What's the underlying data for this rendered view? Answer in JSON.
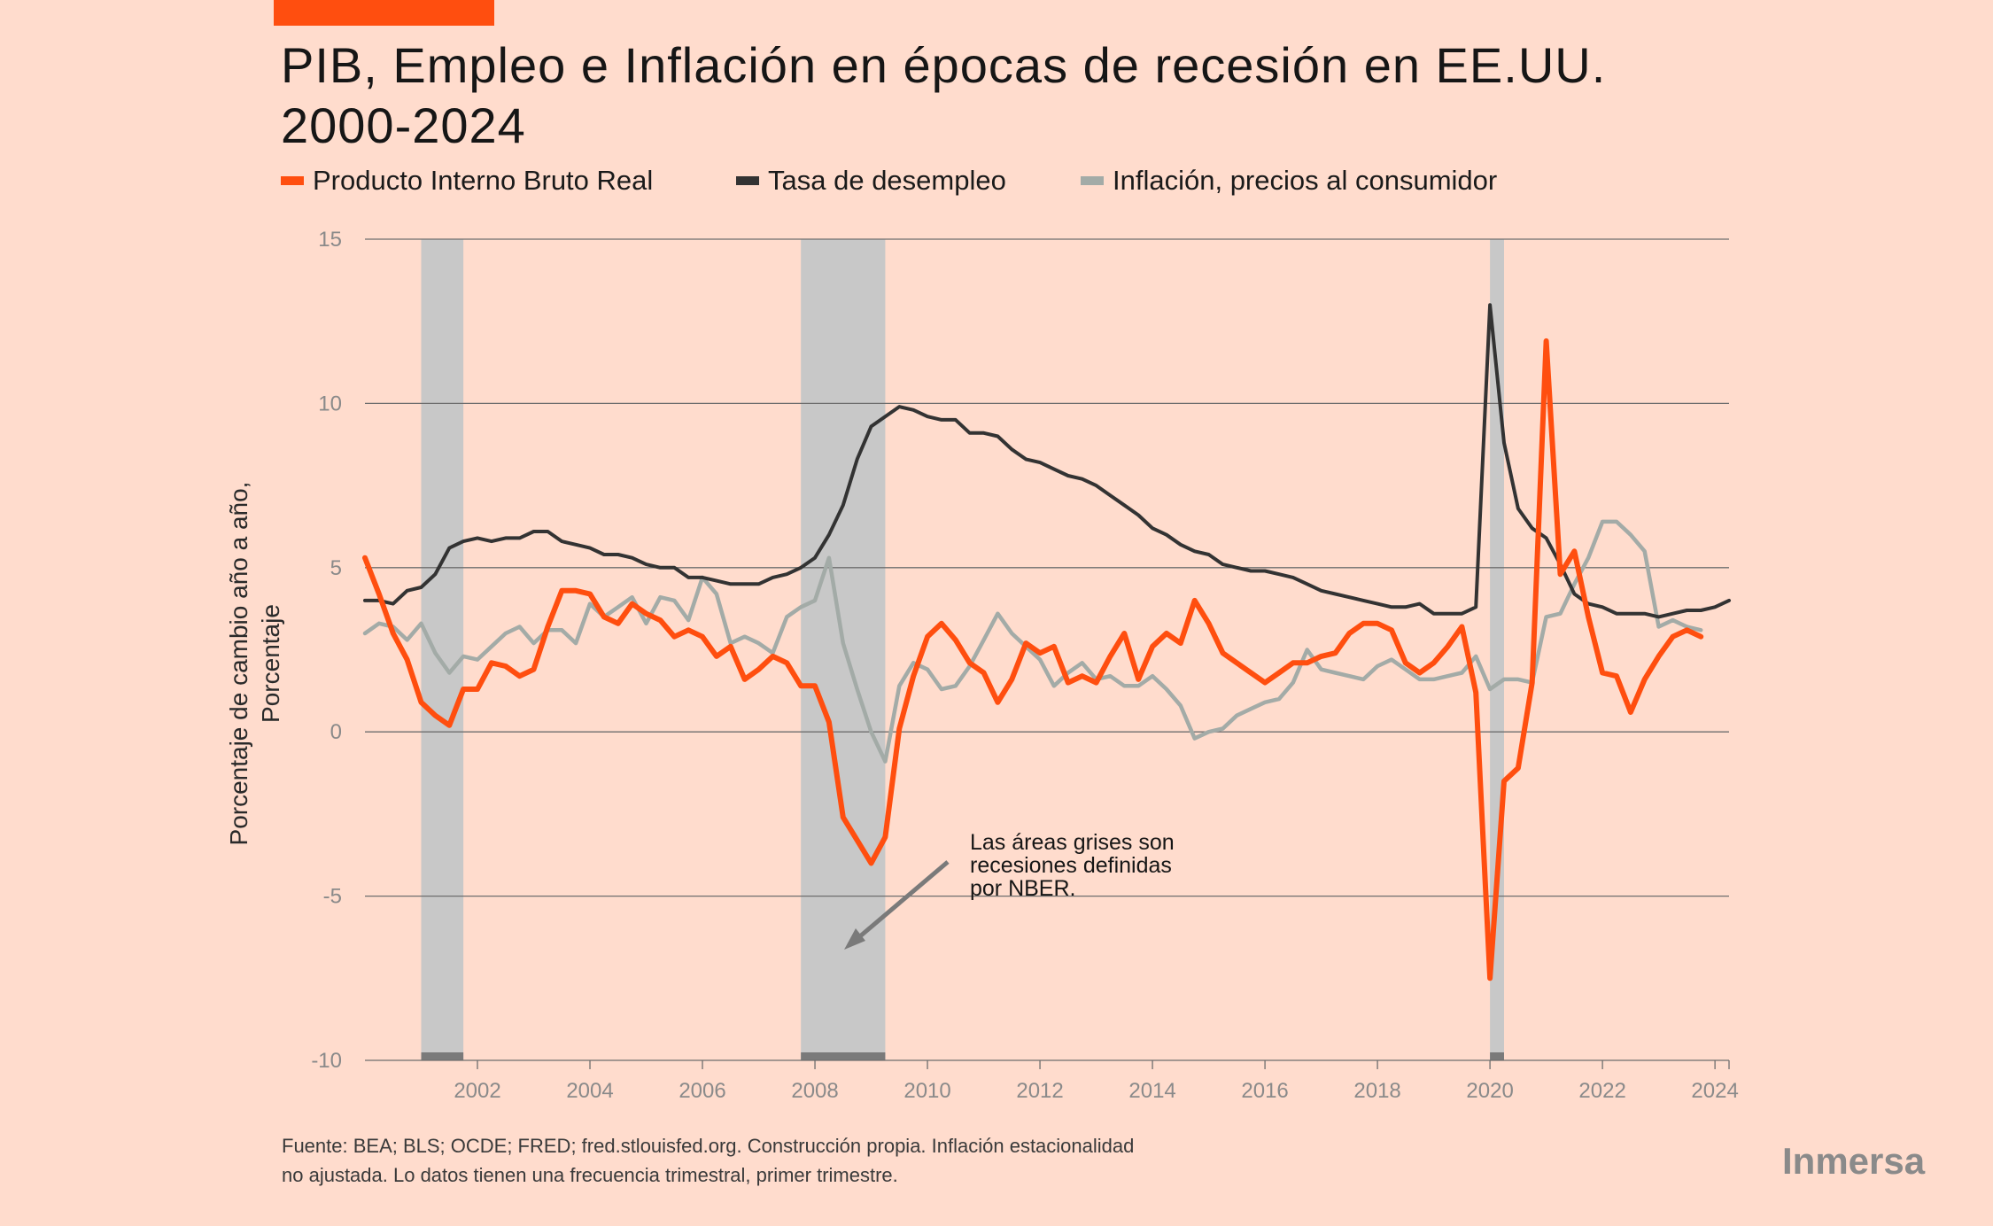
{
  "colors": {
    "background": "#ffdccd",
    "accent": "#ff4e0f",
    "gdp": "#ff4e0f",
    "unemployment": "#333333",
    "inflation": "#a3aba7",
    "recession": "#c8c8c8",
    "gridline": "#6e6e6e"
  },
  "header": {
    "title_line1": "PIB, Empleo e Inflación en épocas de recesión en EE.UU.",
    "title_line2": "2000-2024"
  },
  "legend": {
    "items": [
      {
        "label": "Producto Interno Bruto Real",
        "color": "#ff4e0f"
      },
      {
        "label": "Tasa de desempleo",
        "color": "#333333"
      },
      {
        "label": "Inflación, precios al consumidor",
        "color": "#a3aba7"
      }
    ]
  },
  "annotation": {
    "line1": "Las áreas grises son",
    "line2": "recesiones definidas",
    "line3": "por NBER."
  },
  "footer": {
    "source_line1": "Fuente: BEA; BLS; OCDE; FRED; fred.stlouisfed.org. Construcción propia. Inflación estacionalidad",
    "source_line2": "no ajustada. Lo datos tienen una frecuencia trimestral, primer trimestre.",
    "brand": "Inmersa"
  },
  "chart_data": {
    "type": "line",
    "title": "PIB, Empleo e Inflación en épocas de recesión en EE.UU. 2000-2024",
    "ylabel_line1": "Porcentaje de cambio año a año,",
    "ylabel_line2": "Porcentaje",
    "xlim": [
      2000.0,
      2024.25
    ],
    "ylim": [
      -10,
      15
    ],
    "x_ticks": [
      "2002",
      "2004",
      "2006",
      "2008",
      "2010",
      "2012",
      "2014",
      "2016",
      "2018",
      "2020",
      "2022",
      "2024"
    ],
    "y_ticks": [
      "15",
      "10",
      "5",
      "0",
      "-5",
      "-10"
    ],
    "grid": "horizontal",
    "legend_position": "top",
    "x_start": 2000.0,
    "x_step": 0.25,
    "recessions": [
      [
        2001.0,
        2001.75
      ],
      [
        2007.75,
        2009.25
      ],
      [
        2020.0,
        2020.25
      ]
    ],
    "series": [
      {
        "name": "Producto Interno Bruto Real",
        "values": [
          5.3,
          4.2,
          3.0,
          2.2,
          0.9,
          0.5,
          0.2,
          1.3,
          1.3,
          2.1,
          2.0,
          1.7,
          1.9,
          3.2,
          4.3,
          4.3,
          4.2,
          3.5,
          3.3,
          3.9,
          3.6,
          3.4,
          2.9,
          3.1,
          2.9,
          2.3,
          2.6,
          1.6,
          1.9,
          2.3,
          2.1,
          1.4,
          1.4,
          0.3,
          -2.6,
          -3.3,
          -4.0,
          -3.2,
          0.1,
          1.7,
          2.9,
          3.3,
          2.8,
          2.1,
          1.8,
          0.9,
          1.6,
          2.7,
          2.4,
          2.6,
          1.5,
          1.7,
          1.5,
          2.3,
          3.0,
          1.6,
          2.6,
          3.0,
          2.7,
          4.0,
          3.3,
          2.4,
          2.1,
          1.8,
          1.5,
          1.8,
          2.1,
          2.1,
          2.3,
          2.4,
          3.0,
          3.3,
          3.3,
          3.1,
          2.1,
          1.8,
          2.1,
          2.6,
          3.2,
          1.2,
          -7.5,
          -1.5,
          -1.1,
          1.5,
          11.9,
          4.8,
          5.5,
          3.5,
          1.8,
          1.7,
          0.6,
          1.6,
          2.3,
          2.9,
          3.1,
          2.9
        ],
        "color": "#ff4e0f"
      },
      {
        "name": "Tasa de desempleo",
        "values": [
          4.0,
          4.0,
          3.9,
          4.3,
          4.4,
          4.8,
          5.6,
          5.8,
          5.9,
          5.8,
          5.9,
          5.9,
          6.1,
          6.1,
          5.8,
          5.7,
          5.6,
          5.4,
          5.4,
          5.3,
          5.1,
          5.0,
          5.0,
          4.7,
          4.7,
          4.6,
          4.5,
          4.5,
          4.5,
          4.7,
          4.8,
          5.0,
          5.3,
          6.0,
          6.9,
          8.3,
          9.3,
          9.6,
          9.9,
          9.8,
          9.6,
          9.5,
          9.5,
          9.1,
          9.1,
          9.0,
          8.6,
          8.3,
          8.2,
          8.0,
          7.8,
          7.7,
          7.5,
          7.2,
          6.9,
          6.6,
          6.2,
          6.0,
          5.7,
          5.5,
          5.4,
          5.1,
          5.0,
          4.9,
          4.9,
          4.8,
          4.7,
          4.5,
          4.3,
          4.2,
          4.1,
          4.0,
          3.9,
          3.8,
          3.8,
          3.9,
          3.6,
          3.6,
          3.6,
          3.8,
          13.0,
          8.8,
          6.8,
          6.2,
          5.9,
          5.1,
          4.2,
          3.9,
          3.8,
          3.6,
          3.6,
          3.6,
          3.5,
          3.6,
          3.7,
          3.7,
          3.8,
          4.0
        ],
        "color": "#333333"
      },
      {
        "name": "Inflación, precios al consumidor",
        "values": [
          3.0,
          3.3,
          3.2,
          2.8,
          3.3,
          2.4,
          1.8,
          2.3,
          2.2,
          2.6,
          3.0,
          3.2,
          2.7,
          3.1,
          3.1,
          2.7,
          3.9,
          3.5,
          3.8,
          4.1,
          3.3,
          4.1,
          4.0,
          3.4,
          4.7,
          4.2,
          2.7,
          2.9,
          2.7,
          2.4,
          3.5,
          3.8,
          4.0,
          5.3,
          2.7,
          1.3,
          0.0,
          -0.9,
          1.4,
          2.1,
          1.9,
          1.3,
          1.4,
          2.0,
          2.8,
          3.6,
          3.0,
          2.6,
          2.2,
          1.4,
          1.8,
          2.1,
          1.6,
          1.7,
          1.4,
          1.4,
          1.7,
          1.3,
          0.8,
          -0.2,
          0.0,
          0.1,
          0.5,
          0.7,
          0.9,
          1.0,
          1.5,
          2.5,
          1.9,
          1.8,
          1.7,
          1.6,
          2.0,
          2.2,
          1.9,
          1.6,
          1.6,
          1.7,
          1.8,
          2.3,
          1.3,
          1.6,
          1.6,
          1.5,
          3.5,
          3.6,
          4.5,
          5.3,
          6.4,
          6.4,
          6.0,
          5.5,
          3.2,
          3.4,
          3.2,
          3.1
        ],
        "color": "#a3aba7"
      }
    ]
  }
}
